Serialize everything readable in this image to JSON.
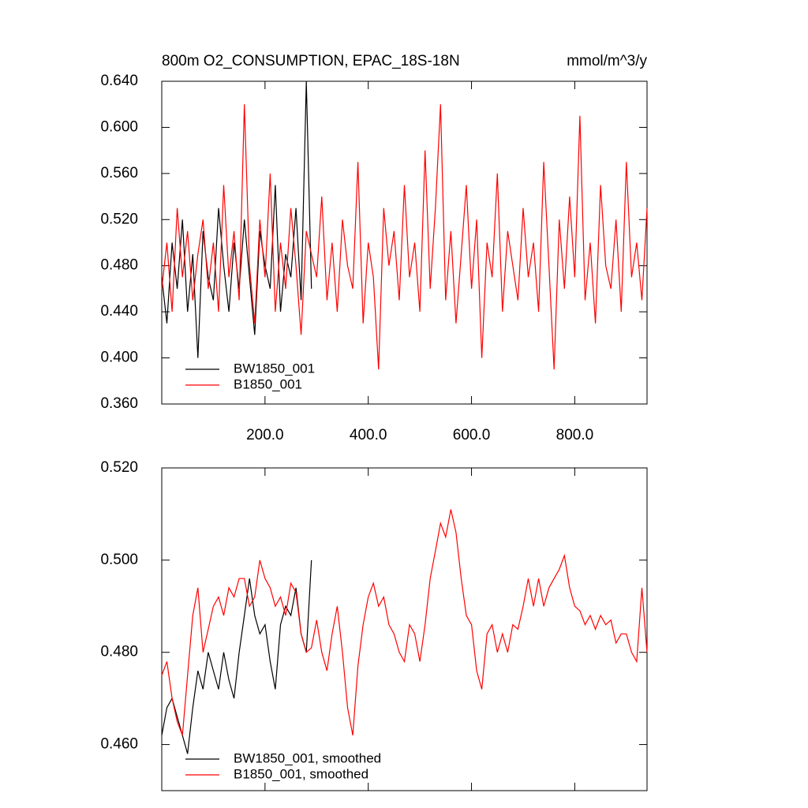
{
  "chart_data": [
    {
      "type": "line",
      "title": "800m O2_CONSUMPTION, EPAC_18S-18N",
      "units": "mmol/m^3/y",
      "xlim": [
        0,
        940
      ],
      "xticks": [
        {
          "value": 200,
          "label": "200.0"
        },
        {
          "value": 400,
          "label": "400.0"
        },
        {
          "value": 600,
          "label": "600.0"
        },
        {
          "value": 800,
          "label": "800.0"
        }
      ],
      "ylim": [
        0.36,
        0.64
      ],
      "yticks": [
        {
          "value": 0.36,
          "label": "0.360"
        },
        {
          "value": 0.4,
          "label": "0.400"
        },
        {
          "value": 0.44,
          "label": "0.440"
        },
        {
          "value": 0.48,
          "label": "0.480"
        },
        {
          "value": 0.52,
          "label": "0.520"
        },
        {
          "value": 0.56,
          "label": "0.560"
        },
        {
          "value": 0.6,
          "label": "0.600"
        },
        {
          "value": 0.64,
          "label": "0.640"
        }
      ],
      "series": [
        {
          "name": "BW1850_001",
          "color": "#000000",
          "x": [
            0,
            10,
            20,
            30,
            40,
            50,
            60,
            70,
            80,
            90,
            100,
            110,
            120,
            130,
            140,
            150,
            160,
            170,
            180,
            190,
            200,
            210,
            220,
            230,
            240,
            250,
            260,
            270,
            280,
            290
          ],
          "values": [
            0.47,
            0.43,
            0.5,
            0.46,
            0.52,
            0.44,
            0.49,
            0.4,
            0.51,
            0.47,
            0.45,
            0.53,
            0.48,
            0.44,
            0.5,
            0.46,
            0.52,
            0.47,
            0.42,
            0.51,
            0.48,
            0.46,
            0.55,
            0.44,
            0.49,
            0.47,
            0.53,
            0.45,
            0.64,
            0.46
          ]
        },
        {
          "name": "B1850_001",
          "color": "#ff0000",
          "x": [
            0,
            10,
            20,
            30,
            40,
            50,
            60,
            70,
            80,
            90,
            100,
            110,
            120,
            130,
            140,
            150,
            160,
            170,
            180,
            190,
            200,
            210,
            220,
            230,
            240,
            250,
            260,
            270,
            280,
            290,
            300,
            310,
            320,
            330,
            340,
            350,
            360,
            370,
            380,
            390,
            400,
            410,
            420,
            430,
            440,
            450,
            460,
            470,
            480,
            490,
            500,
            510,
            520,
            530,
            540,
            550,
            560,
            570,
            580,
            590,
            600,
            610,
            620,
            630,
            640,
            650,
            660,
            670,
            680,
            690,
            700,
            710,
            720,
            730,
            740,
            750,
            760,
            770,
            780,
            790,
            800,
            810,
            820,
            830,
            840,
            850,
            860,
            870,
            880,
            890,
            900,
            910,
            920,
            930,
            940
          ],
          "values": [
            0.46,
            0.5,
            0.44,
            0.53,
            0.47,
            0.51,
            0.45,
            0.49,
            0.52,
            0.46,
            0.5,
            0.44,
            0.55,
            0.47,
            0.51,
            0.45,
            0.62,
            0.48,
            0.43,
            0.52,
            0.47,
            0.56,
            0.44,
            0.5,
            0.46,
            0.53,
            0.48,
            0.42,
            0.51,
            0.49,
            0.47,
            0.54,
            0.45,
            0.5,
            0.44,
            0.52,
            0.48,
            0.46,
            0.57,
            0.43,
            0.5,
            0.47,
            0.39,
            0.53,
            0.48,
            0.51,
            0.45,
            0.55,
            0.47,
            0.5,
            0.44,
            0.58,
            0.46,
            0.53,
            0.62,
            0.45,
            0.51,
            0.43,
            0.49,
            0.55,
            0.46,
            0.52,
            0.4,
            0.5,
            0.47,
            0.56,
            0.44,
            0.51,
            0.48,
            0.45,
            0.53,
            0.47,
            0.5,
            0.44,
            0.57,
            0.48,
            0.39,
            0.52,
            0.46,
            0.54,
            0.47,
            0.61,
            0.45,
            0.5,
            0.43,
            0.55,
            0.48,
            0.46,
            0.52,
            0.44,
            0.57,
            0.47,
            0.5,
            0.45,
            0.53
          ]
        }
      ]
    },
    {
      "type": "line",
      "xlim": [
        0,
        940
      ],
      "ylim": [
        0.45,
        0.52
      ],
      "yticks": [
        {
          "value": 0.46,
          "label": "0.460"
        },
        {
          "value": 0.48,
          "label": "0.480"
        },
        {
          "value": 0.5,
          "label": "0.500"
        },
        {
          "value": 0.52,
          "label": "0.520"
        }
      ],
      "series": [
        {
          "name": "BW1850_001, smoothed",
          "color": "#000000",
          "x": [
            0,
            10,
            20,
            30,
            40,
            50,
            60,
            70,
            80,
            90,
            100,
            110,
            120,
            130,
            140,
            150,
            160,
            170,
            180,
            190,
            200,
            210,
            220,
            230,
            240,
            250,
            260,
            270,
            280,
            290
          ],
          "values": [
            0.462,
            0.468,
            0.47,
            0.466,
            0.462,
            0.458,
            0.468,
            0.476,
            0.472,
            0.48,
            0.476,
            0.472,
            0.48,
            0.474,
            0.47,
            0.48,
            0.488,
            0.496,
            0.488,
            0.484,
            0.486,
            0.478,
            0.472,
            0.486,
            0.49,
            0.488,
            0.494,
            0.484,
            0.48,
            0.5
          ]
        },
        {
          "name": "B1850_001, smoothed",
          "color": "#ff0000",
          "x": [
            0,
            10,
            20,
            30,
            40,
            50,
            60,
            70,
            80,
            90,
            100,
            110,
            120,
            130,
            140,
            150,
            160,
            170,
            180,
            190,
            200,
            210,
            220,
            230,
            240,
            250,
            260,
            270,
            280,
            290,
            300,
            310,
            320,
            330,
            340,
            350,
            360,
            370,
            380,
            390,
            400,
            410,
            420,
            430,
            440,
            450,
            460,
            470,
            480,
            490,
            500,
            510,
            520,
            530,
            540,
            550,
            560,
            570,
            580,
            590,
            600,
            610,
            620,
            630,
            640,
            650,
            660,
            670,
            680,
            690,
            700,
            710,
            720,
            730,
            740,
            750,
            760,
            770,
            780,
            790,
            800,
            810,
            820,
            830,
            840,
            850,
            860,
            870,
            880,
            890,
            900,
            910,
            920,
            930,
            940
          ],
          "values": [
            0.475,
            0.478,
            0.47,
            0.465,
            0.462,
            0.475,
            0.488,
            0.494,
            0.48,
            0.485,
            0.49,
            0.492,
            0.488,
            0.494,
            0.492,
            0.496,
            0.496,
            0.49,
            0.492,
            0.5,
            0.496,
            0.494,
            0.49,
            0.492,
            0.488,
            0.495,
            0.493,
            0.484,
            0.48,
            0.481,
            0.487,
            0.48,
            0.476,
            0.484,
            0.49,
            0.48,
            0.468,
            0.462,
            0.477,
            0.486,
            0.492,
            0.495,
            0.49,
            0.492,
            0.486,
            0.484,
            0.48,
            0.478,
            0.486,
            0.484,
            0.478,
            0.486,
            0.496,
            0.502,
            0.508,
            0.505,
            0.511,
            0.506,
            0.496,
            0.488,
            0.486,
            0.476,
            0.472,
            0.484,
            0.486,
            0.48,
            0.484,
            0.48,
            0.486,
            0.485,
            0.49,
            0.496,
            0.49,
            0.496,
            0.49,
            0.494,
            0.496,
            0.498,
            0.501,
            0.494,
            0.49,
            0.489,
            0.486,
            0.488,
            0.485,
            0.488,
            0.486,
            0.487,
            0.482,
            0.484,
            0.484,
            0.48,
            0.478,
            0.494,
            0.48
          ]
        }
      ]
    }
  ]
}
